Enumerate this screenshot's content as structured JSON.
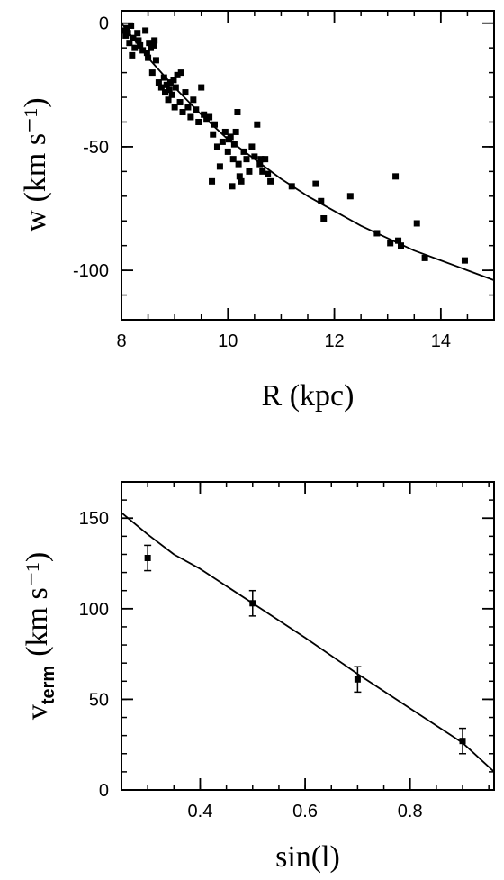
{
  "chart_data": [
    {
      "type": "scatter",
      "xlabel": "R (kpc)",
      "ylabel": "w (km s⁻¹)",
      "xlim": [
        8,
        15
      ],
      "ylim": [
        -120,
        5
      ],
      "x_ticks": [
        8,
        10,
        12,
        14
      ],
      "y_ticks": [
        0,
        -50,
        -100
      ],
      "grid": false,
      "series": [
        {
          "kind": "points",
          "x": [
            8.05,
            8.08,
            8.1,
            8.12,
            8.15,
            8.18,
            8.2,
            8.22,
            8.25,
            8.3,
            8.32,
            8.35,
            8.4,
            8.45,
            8.48,
            8.5,
            8.52,
            8.55,
            8.58,
            8.6,
            8.62,
            8.65,
            8.7,
            8.75,
            8.8,
            8.82,
            8.85,
            8.88,
            8.9,
            8.92,
            8.95,
            8.98,
            9.0,
            9.02,
            9.05,
            9.1,
            9.12,
            9.15,
            9.2,
            9.25,
            9.3,
            9.35,
            9.4,
            9.45,
            9.5,
            9.55,
            9.6,
            9.65,
            9.7,
            9.72,
            9.75,
            9.8,
            9.85,
            9.9,
            9.95,
            10.0,
            10.02,
            10.05,
            10.08,
            10.1,
            10.12,
            10.15,
            10.18,
            10.2,
            10.22,
            10.25,
            10.3,
            10.35,
            10.4,
            10.45,
            10.5,
            10.55,
            10.6,
            10.62,
            10.65,
            10.7,
            10.75,
            10.8,
            11.2,
            11.65,
            11.75,
            11.8,
            12.3,
            12.8,
            13.05,
            13.15,
            13.2,
            13.25,
            13.55,
            13.7,
            14.45
          ],
          "y": [
            -3,
            -5,
            -2,
            -4,
            -8,
            -1,
            -13,
            -6,
            -10,
            -4,
            -7,
            -9,
            -11,
            -3,
            -12,
            -14,
            -8,
            -10,
            -20,
            -9,
            -7,
            -15,
            -24,
            -26,
            -22,
            -28,
            -25,
            -31,
            -27,
            -24,
            -29,
            -23,
            -34,
            -26,
            -21,
            -32,
            -20,
            -36,
            -28,
            -34,
            -38,
            -31,
            -35,
            -40,
            -26,
            -37,
            -39,
            -38,
            -64,
            -45,
            -41,
            -50,
            -58,
            -48,
            -44,
            -52,
            -47,
            -46,
            -66,
            -55,
            -49,
            -44,
            -36,
            -57,
            -62,
            -64,
            -52,
            -55,
            -60,
            -50,
            -54,
            -41,
            -57,
            -55,
            -60,
            -55,
            -61,
            -64,
            -66,
            -65,
            -72,
            -79,
            -70,
            -85,
            -89,
            -62,
            -88,
            -90,
            -81,
            -95,
            -96
          ]
        },
        {
          "kind": "line",
          "x": [
            8,
            8.5,
            9,
            9.5,
            10,
            10.5,
            11,
            11.5,
            12,
            12.5,
            13,
            13.5,
            14,
            14.5,
            15
          ],
          "y": [
            0,
            -14,
            -26,
            -37,
            -47,
            -55,
            -63,
            -70,
            -76,
            -82,
            -87,
            -92,
            -96,
            -100,
            -104
          ]
        }
      ]
    },
    {
      "type": "scatter",
      "xlabel": "sin(l)",
      "ylabel": "v",
      "ylabel_sub": "term",
      "ylabel_units": "(km s⁻¹)",
      "xlim": [
        0.25,
        0.96
      ],
      "ylim": [
        0,
        170
      ],
      "x_ticks": [
        0.4,
        0.6,
        0.8
      ],
      "y_ticks": [
        0,
        50,
        100,
        150
      ],
      "grid": false,
      "series": [
        {
          "kind": "points_with_errors",
          "x": [
            0.3,
            0.5,
            0.7,
            0.9
          ],
          "y": [
            128,
            103,
            61,
            27
          ],
          "err": [
            7,
            7,
            7,
            7
          ]
        },
        {
          "kind": "line",
          "x": [
            0.25,
            0.3,
            0.35,
            0.4,
            0.5,
            0.6,
            0.7,
            0.8,
            0.9,
            0.96
          ],
          "y": [
            153,
            141,
            130,
            122,
            103,
            84,
            64,
            45,
            26,
            10
          ]
        }
      ]
    }
  ]
}
